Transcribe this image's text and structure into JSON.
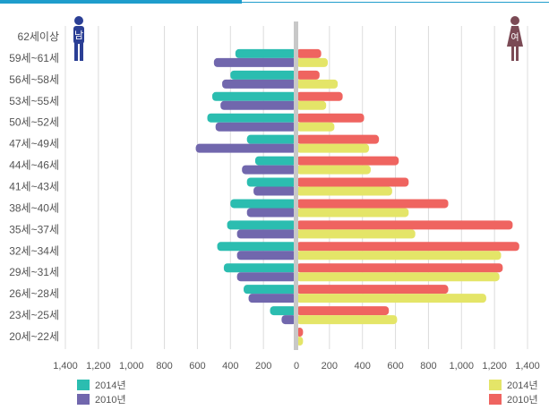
{
  "chart_data": {
    "type": "bar",
    "orientation": "horizontal",
    "layout": "population-pyramid",
    "categories": [
      "62세이상",
      "59세~61세",
      "56세~58세",
      "53세~55세",
      "50세~52세",
      "47세~49세",
      "44세~46세",
      "41세~43세",
      "38세~40세",
      "35세~37세",
      "32세~34세",
      "29세~31세",
      "26세~28세",
      "23세~25세",
      "20세~22세"
    ],
    "male_icon_label": "남",
    "female_icon_label": "여",
    "x_ticks_left": [
      "1,400",
      "1,200",
      "1,000",
      "800",
      "600",
      "400",
      "200",
      "0"
    ],
    "x_ticks_right": [
      "200",
      "400",
      "600",
      "800",
      "1,000",
      "1,200",
      "1,400"
    ],
    "xlim": [
      0,
      1400
    ],
    "grid": true,
    "legend_position": "bottom",
    "male": {
      "series": [
        {
          "name": "2014년",
          "color": "#2bbdb0",
          "values": [
            5,
            370,
            400,
            510,
            540,
            300,
            250,
            300,
            400,
            420,
            480,
            440,
            320,
            160,
            10
          ]
        },
        {
          "name": "2010년",
          "color": "#7167ad",
          "values": [
            5,
            500,
            450,
            460,
            490,
            610,
            330,
            260,
            300,
            360,
            360,
            360,
            290,
            90,
            10
          ]
        }
      ]
    },
    "female": {
      "series": [
        {
          "name": "2010년",
          "color": "#ef6460",
          "values": [
            0,
            150,
            140,
            280,
            410,
            500,
            620,
            680,
            920,
            1310,
            1350,
            1250,
            920,
            560,
            40
          ]
        },
        {
          "name": "2014년",
          "color": "#e4e568",
          "values": [
            0,
            190,
            250,
            180,
            230,
            440,
            450,
            580,
            680,
            720,
            1240,
            1230,
            1150,
            610,
            40
          ]
        }
      ]
    },
    "legend": {
      "left": [
        {
          "label": "2014년",
          "color": "#2bbdb0"
        },
        {
          "label": "2010년",
          "color": "#7167ad"
        }
      ],
      "right": [
        {
          "label": "2014년",
          "color": "#e4e568"
        },
        {
          "label": "2010년",
          "color": "#ef6460"
        }
      ]
    }
  }
}
